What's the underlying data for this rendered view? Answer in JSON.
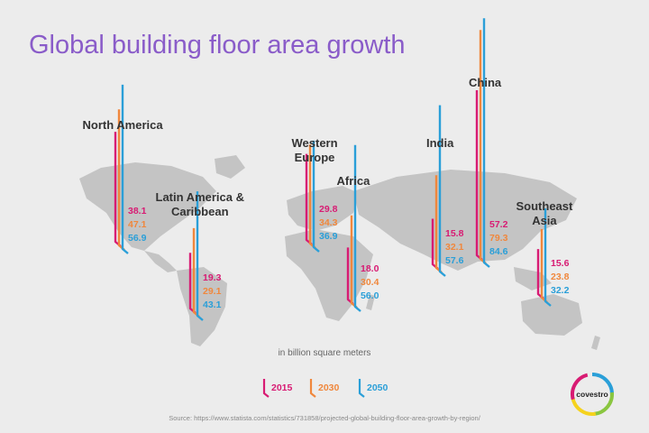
{
  "title": "Global building floor area growth",
  "unit_note": "in billion square meters",
  "source": "Source: https://www.statista.com/statistics/731858/projected-global-building-floor-area-growth-by-region/",
  "logo_text": "covestro",
  "colors": {
    "2015": "#d81b73",
    "2030": "#f0873c",
    "2050": "#2a9fd8",
    "title": "#8a5cc9",
    "map": "#c4c4c4"
  },
  "legend": [
    "2015",
    "2030",
    "2050"
  ],
  "chart_data": {
    "type": "bar",
    "title": "Global building floor area growth",
    "ylabel": "in billion square meters",
    "categories": [
      "North America",
      "Latin America & Caribbean",
      "Western Europe",
      "Africa",
      "India",
      "China",
      "Southeast Asia"
    ],
    "series": [
      {
        "name": "2015",
        "values": [
          38.1,
          19.3,
          29.8,
          18.0,
          15.8,
          57.2,
          15.6
        ]
      },
      {
        "name": "2030",
        "values": [
          47.1,
          29.1,
          34.3,
          30.4,
          32.1,
          79.3,
          23.8
        ]
      },
      {
        "name": "2050",
        "values": [
          56.9,
          43.1,
          36.9,
          56.0,
          57.6,
          84.6,
          32.2
        ]
      }
    ]
  },
  "regions": [
    {
      "lines": [
        "North America"
      ]
    },
    {
      "lines": [
        "Latin America &",
        "Caribbean"
      ]
    },
    {
      "lines": [
        "Western",
        "Europe"
      ]
    },
    {
      "lines": [
        "Africa"
      ]
    },
    {
      "lines": [
        "India"
      ]
    },
    {
      "lines": [
        "China"
      ]
    },
    {
      "lines": [
        "Southeast",
        "Asia"
      ]
    }
  ]
}
